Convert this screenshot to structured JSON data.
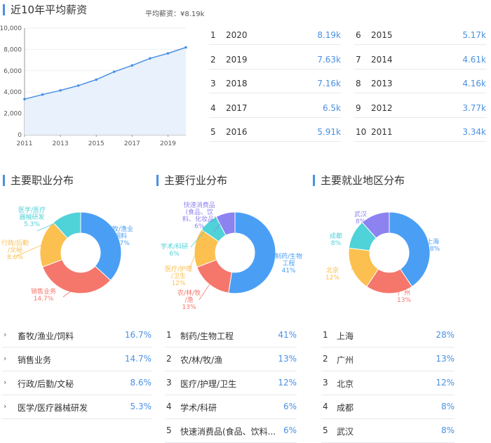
{
  "salary": {
    "title": "近10年平均薪资",
    "avg_label": "平均薪资：¥8.19k",
    "y_ticks": [
      "10,000",
      "8,000",
      "6,000",
      "4,000",
      "2,000",
      "0"
    ],
    "x_ticks": [
      "2011",
      "2013",
      "2015",
      "2017",
      "2019"
    ],
    "table_left": [
      {
        "rank": "1",
        "year": "2020",
        "value": "8.19k"
      },
      {
        "rank": "2",
        "year": "2019",
        "value": "7.63k"
      },
      {
        "rank": "3",
        "year": "2018",
        "value": "7.16k"
      },
      {
        "rank": "4",
        "year": "2017",
        "value": "6.5k"
      },
      {
        "rank": "5",
        "year": "2016",
        "value": "5.91k"
      }
    ],
    "table_right": [
      {
        "rank": "6",
        "year": "2015",
        "value": "5.17k"
      },
      {
        "rank": "7",
        "year": "2014",
        "value": "4.61k"
      },
      {
        "rank": "8",
        "year": "2013",
        "value": "4.16k"
      },
      {
        "rank": "9",
        "year": "2012",
        "value": "3.77k"
      },
      {
        "rank": "10",
        "year": "2011",
        "value": "3.34k"
      }
    ]
  },
  "chart_data": [
    {
      "type": "line",
      "x": [
        2011,
        2012,
        2013,
        2014,
        2015,
        2016,
        2017,
        2018,
        2019,
        2020
      ],
      "values": [
        3340,
        3770,
        4160,
        4610,
        5170,
        5910,
        6500,
        7160,
        7630,
        8190
      ],
      "ylim": [
        0,
        10000
      ],
      "color": "#4a90e2"
    },
    {
      "type": "pie",
      "title": "主要职业分布",
      "labels": [
        "畜牧/渔业/饲料",
        "销售业务",
        "行政/后勤/文秘",
        "医学/医疗器械研发"
      ],
      "values": [
        16.7,
        14.7,
        8.6,
        5.3
      ],
      "colors": [
        "#4a9ff5",
        "#f5766b",
        "#fbc04f",
        "#4fd2d8"
      ]
    },
    {
      "type": "pie",
      "title": "主要行业分布",
      "labels": [
        "制药/生物工程",
        "农/林/牧/渔",
        "医疗/护理/卫生",
        "学术/科研",
        "快速消费品(食品、饮料、化妆品)"
      ],
      "values": [
        41,
        13,
        12,
        6,
        6
      ],
      "colors": [
        "#4a9ff5",
        "#f5766b",
        "#fbc04f",
        "#4fd2d8",
        "#8c82f0"
      ]
    },
    {
      "type": "pie",
      "title": "主要就业地区分布",
      "labels": [
        "上海",
        "广州",
        "北京",
        "成都",
        "武汉"
      ],
      "values": [
        28,
        13,
        12,
        8,
        8
      ],
      "colors": [
        "#4a9ff5",
        "#f5766b",
        "#fbc04f",
        "#4fd2d8",
        "#8c82f0"
      ]
    }
  ],
  "occupation": {
    "title": "主要职业分布",
    "donut_labels": [
      "畜牧/渔业\n/饲料\n16.7%",
      "销售业务\n14.7%",
      "行政/后勤\n/文秘\n8.6%",
      "医学/医疗\n器械研发\n5.3%"
    ],
    "items": [
      {
        "label": "畜牧/渔业/饲料",
        "value": "16.7%"
      },
      {
        "label": "销售业务",
        "value": "14.7%"
      },
      {
        "label": "行政/后勤/文秘",
        "value": "8.6%"
      },
      {
        "label": "医学/医疗器械研发",
        "value": "5.3%"
      }
    ]
  },
  "industry": {
    "title": "主要行业分布",
    "donut_labels": [
      "制药/生物\n工程\n41%",
      "农/林/牧\n/渔\n13%",
      "医疗/护理\n/卫生\n12%",
      "学术/科研\n6%",
      "快速消费品\n(食品、饮\n料、化妆品)\n6%"
    ],
    "items": [
      {
        "rank": "1",
        "label": "制药/生物工程",
        "value": "41%"
      },
      {
        "rank": "2",
        "label": "农/林/牧/渔",
        "value": "13%"
      },
      {
        "rank": "3",
        "label": "医疗/护理/卫生",
        "value": "12%"
      },
      {
        "rank": "4",
        "label": "学术/科研",
        "value": "6%"
      },
      {
        "rank": "5",
        "label": "快速消费品(食品、饮料...",
        "value": "6%"
      }
    ]
  },
  "region": {
    "title": "主要就业地区分布",
    "donut_labels": [
      "上海\n28%",
      "广州\n13%",
      "北京\n12%",
      "成都\n8%",
      "武汉\n8%"
    ],
    "items": [
      {
        "rank": "1",
        "label": "上海",
        "value": "28%"
      },
      {
        "rank": "2",
        "label": "广州",
        "value": "13%"
      },
      {
        "rank": "3",
        "label": "北京",
        "value": "12%"
      },
      {
        "rank": "4",
        "label": "成都",
        "value": "8%"
      },
      {
        "rank": "5",
        "label": "武汉",
        "value": "8%"
      }
    ]
  },
  "icons": {
    "chevron": "chevron-right-icon"
  }
}
